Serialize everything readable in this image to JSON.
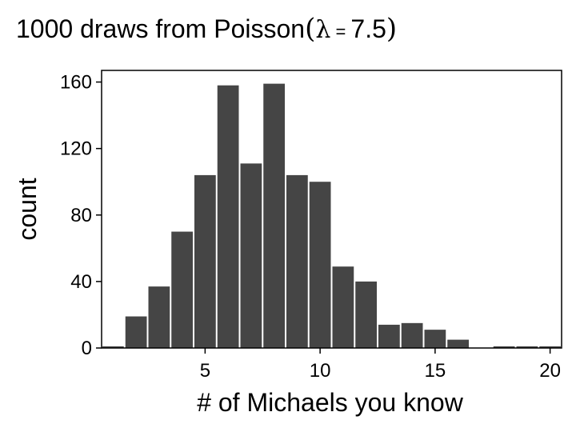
{
  "chart_data": {
    "type": "bar",
    "title_prefix": "1000 draws from Poisson",
    "title_lambda": "λ",
    "title_eq": " = ",
    "title_value": "7.5",
    "paren_open": "(",
    "paren_close": ")",
    "xlabel": "# of Michaels you know",
    "ylabel": "count",
    "xlim": [
      0.5,
      20.5
    ],
    "ylim": [
      0,
      167
    ],
    "xticks": [
      5,
      10,
      15,
      20
    ],
    "yticks": [
      0,
      40,
      80,
      120,
      160
    ],
    "grid": false,
    "x": [
      1,
      2,
      3,
      4,
      5,
      6,
      7,
      8,
      9,
      10,
      11,
      12,
      13,
      14,
      15,
      16,
      17,
      18,
      19,
      20
    ],
    "values": [
      1,
      19,
      37,
      70,
      104,
      158,
      111,
      159,
      104,
      100,
      49,
      40,
      14,
      15,
      11,
      5,
      0,
      1,
      1,
      1
    ],
    "bar_color": "#454545"
  }
}
